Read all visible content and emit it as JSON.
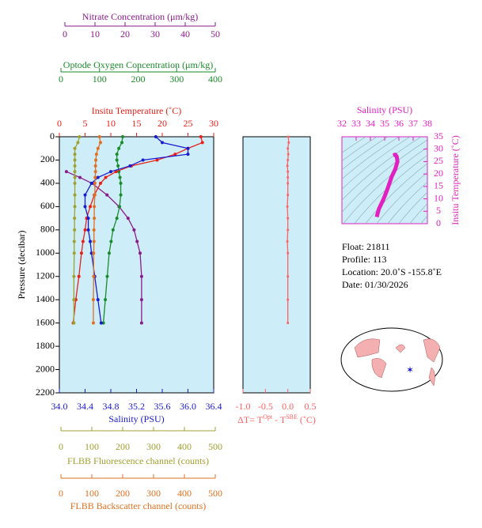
{
  "chart_data": [
    {
      "type": "profile",
      "ylabel": "Pressure (decibar)",
      "ylim": [
        0,
        2200
      ],
      "yticks": [
        0,
        200,
        400,
        600,
        800,
        1000,
        1200,
        1400,
        1600,
        1800,
        2000,
        2200
      ],
      "axes": [
        {
          "label": "Nitrate Concentration (μm/kg)",
          "color": "#8b1a8b",
          "xlim": [
            0,
            50
          ],
          "xticks": [
            0,
            10,
            20,
            30,
            40,
            50
          ],
          "pressure": [
            0,
            50,
            100,
            150,
            200,
            250,
            300,
            350,
            400,
            500,
            600,
            700,
            800,
            900,
            1000,
            1200,
            1400,
            1600
          ],
          "values": [
            null,
            null,
            null,
            null,
            null,
            null,
            0.5,
            5,
            9,
            14,
            18,
            21,
            23,
            24,
            25,
            25.5,
            25.5,
            25.5
          ]
        },
        {
          "label": "Optode Oxygen Concentration (μm/kg)",
          "color": "#1a8b2a",
          "xlim": [
            0,
            400
          ],
          "xticks": [
            0,
            100,
            200,
            300,
            400
          ],
          "pressure": [
            0,
            50,
            100,
            150,
            200,
            250,
            300,
            350,
            400,
            500,
            600,
            700,
            800,
            900,
            1000,
            1200,
            1400,
            1600
          ],
          "values": [
            160,
            158,
            150,
            145,
            145,
            148,
            150,
            153,
            155,
            155,
            152,
            145,
            135,
            130,
            125,
            120,
            115,
            110
          ]
        },
        {
          "label": "Insitu Temperature (˚C)",
          "color": "#e8201a",
          "xlim": [
            0,
            30
          ],
          "xticks": [
            0,
            5,
            10,
            15,
            20,
            25,
            30
          ],
          "pressure": [
            0,
            50,
            100,
            150,
            200,
            250,
            300,
            350,
            400,
            500,
            600,
            700,
            800,
            900,
            1000,
            1200,
            1400,
            1600
          ],
          "values": [
            27.5,
            27.8,
            25,
            22.5,
            19,
            14,
            11,
            9,
            8,
            6.8,
            6,
            5.3,
            5,
            4.6,
            4.3,
            3.8,
            3.2,
            2.7
          ]
        },
        {
          "label": "Salinity (PSU)",
          "color": "#1a1ad0",
          "xlim": [
            34,
            36.4
          ],
          "xticks": [
            {
              "value": 34,
              "label": "34.0"
            },
            34.4,
            34.8,
            35.2,
            35.6,
            {
              "value": 36,
              "label": "36.0"
            },
            36.4
          ],
          "pressure": [
            0,
            50,
            100,
            150,
            200,
            250,
            300,
            350,
            400,
            500,
            600,
            700,
            800,
            900,
            1000,
            1200,
            1400,
            1600
          ],
          "values": [
            35.5,
            35.6,
            36.0,
            36.0,
            35.3,
            35.1,
            34.8,
            34.6,
            34.5,
            34.4,
            34.4,
            34.45,
            34.45,
            34.48,
            34.5,
            34.55,
            34.6,
            34.65
          ]
        },
        {
          "label": "FLBB Fluorescence channel (counts)",
          "color": "#a0a030",
          "xlim": [
            0,
            500
          ],
          "xticks": [
            0,
            100,
            200,
            300,
            400,
            500
          ],
          "pressure": [
            0,
            50,
            100,
            150,
            200,
            250,
            300,
            350,
            400,
            500,
            600,
            700,
            800,
            900,
            1000,
            1200,
            1400,
            1600
          ],
          "values": [
            60,
            55,
            45,
            45,
            45,
            45,
            45,
            45,
            45,
            45,
            45,
            44,
            44,
            43,
            43,
            42,
            42,
            42
          ]
        },
        {
          "label": "FLBB Backscatter channel (counts)",
          "color": "#e07020",
          "xlim": [
            0,
            500
          ],
          "xticks": [
            0,
            100,
            200,
            300,
            400,
            500
          ],
          "pressure": [
            0,
            50,
            100,
            150,
            200,
            250,
            300,
            350,
            400,
            500,
            600,
            700,
            800,
            900,
            1000,
            1200,
            1400,
            1600
          ],
          "values": [
            125,
            128,
            120,
            115,
            113,
            112,
            112,
            111,
            110,
            110,
            108,
            108,
            107,
            107,
            106,
            106,
            105,
            105
          ]
        }
      ]
    },
    {
      "type": "delta",
      "xlabel": [
        "ΔT= T",
        "Opt",
        " - T",
        "SBE",
        " (˚C)"
      ],
      "color": "#ff6060",
      "xlim": [
        -1,
        0.5
      ],
      "xticks": [
        {
          "value": -1,
          "label": "-1.0"
        },
        -0.5,
        {
          "value": 0,
          "label": "0.0"
        },
        0.5
      ],
      "ylim": [
        0,
        2200
      ],
      "pressure": [
        0,
        50,
        100,
        150,
        200,
        250,
        300,
        350,
        400,
        500,
        600,
        700,
        800,
        900,
        1000,
        1200,
        1400,
        1600
      ],
      "values": [
        0.01,
        0.02,
        0.0,
        0.01,
        0.0,
        -0.01,
        0.0,
        0.0,
        0.0,
        0.0,
        -0.01,
        0.0,
        0.0,
        -0.01,
        0.0,
        0.0,
        0.0,
        0.0
      ]
    },
    {
      "type": "ts",
      "xlabel": "Salinity (PSU)",
      "ylabel": "Insitu Temperature (˚C)",
      "color": "#e020c0",
      "xlim": [
        32,
        38
      ],
      "xticks": [
        32,
        33,
        34,
        35,
        36,
        37,
        38
      ],
      "ylim": [
        0,
        35
      ],
      "yticks": [
        0,
        5,
        10,
        15,
        20,
        25,
        30,
        35
      ],
      "salinity": [
        35.6,
        35.75,
        35.85,
        35.9,
        35.75,
        35.5,
        35.2,
        35.0,
        34.85,
        34.6,
        34.5,
        34.45
      ],
      "temperature": [
        27.5,
        27.8,
        27,
        25,
        22,
        19,
        14,
        11,
        9,
        6,
        4,
        2.7
      ]
    }
  ],
  "info": [
    "Float:  21811",
    "Profile:  113",
    "Location:  20.0˚S  -155.8˚E",
    "Date:  01/30/2026"
  ]
}
